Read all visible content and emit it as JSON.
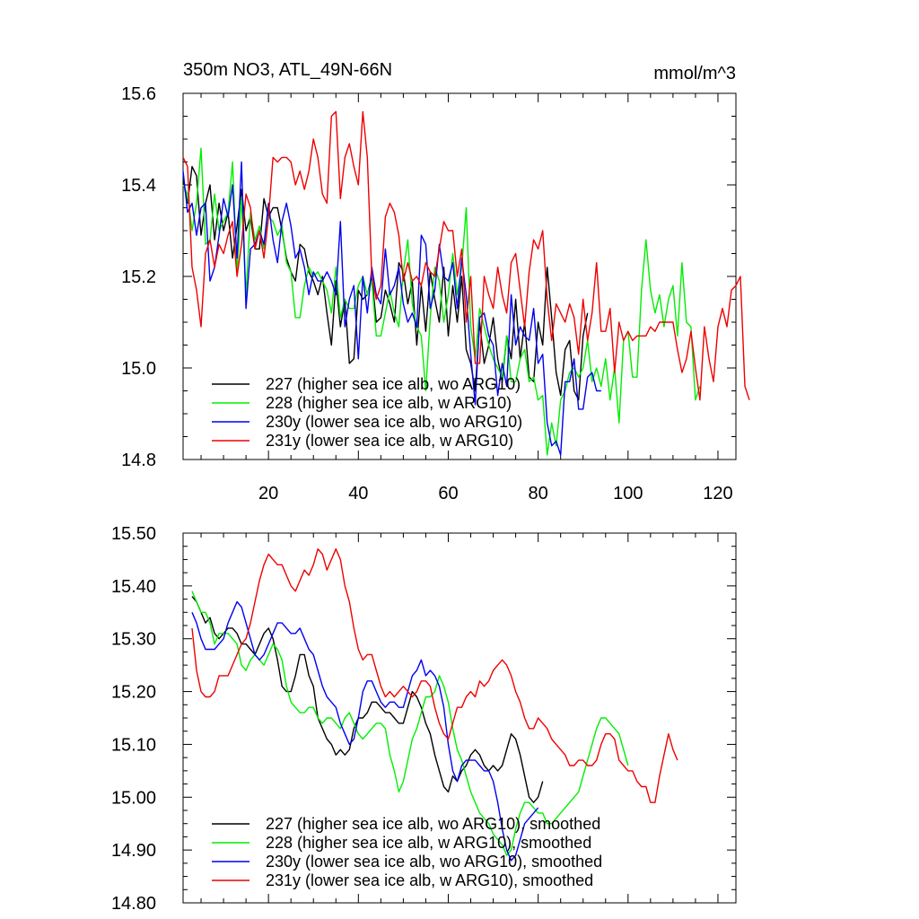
{
  "chart_data": [
    {
      "type": "line",
      "title": "350m NO3, ATL_49N-66N",
      "units": "mmol/m^3",
      "xlim": [
        1,
        124
      ],
      "ylim": [
        14.8,
        15.6
      ],
      "yticks": [
        "15.6",
        "15.4",
        "15.2",
        "15.0",
        "14.8"
      ],
      "xticks": [
        "20",
        "40",
        "60",
        "80",
        "100",
        "120"
      ],
      "series": [
        {
          "name": "227 (higher sea ice alb, wo ARG10)",
          "color": "#000000",
          "x0": 1,
          "values": [
            15.41,
            15.36,
            15.44,
            15.42,
            15.29,
            15.36,
            15.4,
            15.28,
            15.36,
            15.3,
            15.34,
            15.24,
            15.31,
            15.39,
            15.3,
            15.33,
            15.26,
            15.26,
            15.37,
            15.33,
            15.35,
            15.35,
            15.3,
            15.24,
            15.21,
            15.19,
            15.27,
            15.26,
            15.21,
            15.19,
            15.16,
            15.2,
            15.12,
            15.05,
            15.19,
            15.09,
            15.15,
            15.01,
            15.02,
            15.17,
            15.15,
            15.16,
            15.2,
            15.1,
            15.11,
            15.17,
            15.14,
            15.1,
            15.23,
            15.21,
            15.14,
            15.19,
            15.05,
            15.18,
            15.08,
            15.21,
            15.15,
            15.1,
            15.22,
            15.07,
            15.18,
            15.1,
            15.2,
            15.04,
            15.01,
            14.95,
            15.1,
            15.01,
            15.05,
            15.11,
            15.02,
            14.97,
            15.07,
            15.02,
            15.15,
            15.02,
            15.1,
            14.98,
            14.97,
            15.1,
            15.05,
            15.22,
            15.11,
            14.99,
            14.94,
            15.04,
            15.06,
            14.95,
            14.93,
            15.07,
            15.12
          ]
        },
        {
          "name": "228 (higher sea ice alb, w ARG10)",
          "color": "#00ee00",
          "x0": 1,
          "values": [
            15.4,
            15.38,
            15.3,
            15.36,
            15.48,
            15.27,
            15.28,
            15.38,
            15.3,
            15.32,
            15.34,
            15.45,
            15.21,
            15.37,
            15.16,
            15.34,
            15.28,
            15.31,
            15.26,
            15.33,
            15.32,
            15.29,
            15.31,
            15.23,
            15.21,
            15.11,
            15.11,
            15.18,
            15.22,
            15.2,
            15.21,
            15.19,
            15.17,
            15.12,
            15.22,
            15.11,
            15.15,
            15.13,
            15.13,
            15.18,
            15.2,
            15.16,
            15.19,
            15.07,
            15.07,
            15.12,
            15.17,
            15.12,
            15.09,
            15.21,
            15.28,
            15.14,
            15.09,
            15.07,
            14.95,
            15.11,
            15.22,
            15.19,
            15.1,
            15.16,
            15.25,
            15.16,
            15.22,
            15.35,
            15.09,
            15.02,
            15.13,
            15.09,
            15.05,
            15.02,
            15.0,
            14.98,
            15.07,
            14.97,
            14.97,
            15.02,
            15.04,
            14.97,
            14.98,
            14.93,
            14.94,
            14.81,
            14.88,
            14.83,
            14.93,
            14.95,
            14.99,
            15.0,
            14.98,
            15.0,
            15.06,
            14.97,
            15.0,
            14.96,
            15.02,
            14.93,
            15.0,
            14.88,
            15.06,
            15.08,
            14.98,
            14.98,
            15.17,
            15.28,
            15.17,
            15.12,
            15.16,
            15.09,
            15.15,
            15.18,
            15.07,
            15.23,
            15.1,
            15.09,
            14.93,
            14.96
          ]
        },
        {
          "name": "230y (lower sea ice alb, wo ARG10)",
          "color": "#0000ee",
          "x0": 1,
          "values": [
            15.43,
            15.34,
            15.36,
            15.29,
            15.35,
            15.36,
            15.19,
            15.22,
            15.29,
            15.37,
            15.33,
            15.4,
            15.24,
            15.45,
            15.13,
            15.26,
            15.27,
            15.3,
            15.27,
            15.36,
            15.28,
            15.23,
            15.32,
            15.36,
            15.31,
            15.24,
            15.26,
            15.22,
            15.16,
            15.21,
            15.19,
            15.19,
            15.21,
            15.19,
            15.16,
            15.32,
            15.09,
            15.15,
            15.18,
            15.02,
            15.2,
            15.12,
            15.22,
            15.16,
            15.14,
            15.26,
            15.16,
            15.18,
            15.22,
            15.14,
            15.1,
            15.12,
            15.09,
            15.29,
            15.27,
            15.13,
            15.17,
            15.27,
            15.2,
            15.19,
            15.23,
            15.13,
            15.24,
            15.16,
            15.03,
            14.92,
            15.11,
            15.12,
            15.07,
            15.05,
            14.94,
            15.01,
            14.96,
            15.16,
            15.05,
            15.09,
            15.07,
            15.06,
            15.13,
            15.01,
            15.03,
            14.88,
            14.83,
            14.84,
            14.81,
            14.97,
            14.97,
            15.02,
            14.91,
            14.91,
            14.98,
            14.99,
            14.95,
            14.95
          ]
        },
        {
          "name": "231y (lower sea ice alb, w ARG10)",
          "color": "#ee0000",
          "x0": 1,
          "values": [
            15.46,
            15.44,
            15.22,
            15.17,
            15.09,
            15.25,
            15.28,
            15.22,
            15.27,
            15.25,
            15.29,
            15.32,
            15.2,
            15.27,
            15.38,
            15.35,
            15.26,
            15.3,
            15.24,
            15.33,
            15.46,
            15.45,
            15.46,
            15.46,
            15.45,
            15.4,
            15.43,
            15.39,
            15.43,
            15.5,
            15.46,
            15.38,
            15.36,
            15.55,
            15.56,
            15.37,
            15.46,
            15.49,
            15.44,
            15.4,
            15.56,
            15.46,
            15.2,
            15.15,
            15.18,
            15.33,
            15.36,
            15.34,
            15.29,
            15.19,
            15.23,
            15.19,
            15.2,
            15.18,
            15.23,
            15.21,
            15.2,
            15.26,
            15.32,
            15.3,
            15.3,
            15.2,
            15.26,
            15.1,
            15.2,
            15.01,
            15.01,
            15.2,
            15.16,
            15.13,
            15.22,
            15.16,
            15.12,
            15.23,
            15.25,
            15.17,
            15.09,
            15.21,
            15.28,
            15.26,
            15.3,
            15.15,
            15.06,
            15.14,
            15.12,
            15.1,
            15.14,
            15.11,
            15.03,
            15.15,
            15.06,
            15.12,
            15.23,
            15.08,
            15.08,
            15.13,
            14.99,
            15.1,
            15.06,
            15.08,
            15.06,
            15.07,
            15.07,
            15.07,
            15.09,
            15.08,
            15.1,
            15.1,
            15.1,
            15.1,
            15.04,
            14.99,
            15.02,
            15.08,
            15.0,
            14.93,
            15.09,
            15.02,
            14.97,
            15.09,
            15.13,
            15.09,
            15.17,
            15.18,
            15.2,
            14.96,
            14.93
          ]
        }
      ],
      "legend": "lower-left"
    },
    {
      "type": "line",
      "title": "",
      "xlim": [
        1,
        124
      ],
      "ylim": [
        14.8,
        15.5
      ],
      "yticks": [
        "15.50",
        "15.40",
        "15.30",
        "15.20",
        "15.10",
        "15.00",
        "14.90",
        "14.80"
      ],
      "series": [
        {
          "name": "227 (higher sea ice alb, wo ARG10), smoothed",
          "color": "#000000",
          "x0": 3,
          "values": [
            15.38,
            15.37,
            15.35,
            15.33,
            15.34,
            15.31,
            15.3,
            15.31,
            15.32,
            15.32,
            15.31,
            15.29,
            15.29,
            15.28,
            15.27,
            15.29,
            15.31,
            15.32,
            15.3,
            15.26,
            15.21,
            15.2,
            15.2,
            15.23,
            15.27,
            15.27,
            15.23,
            15.21,
            15.15,
            15.13,
            15.11,
            15.1,
            15.08,
            15.09,
            15.08,
            15.09,
            15.13,
            15.15,
            15.15,
            15.16,
            15.18,
            15.18,
            15.17,
            15.16,
            15.16,
            15.15,
            15.14,
            15.14,
            15.17,
            15.2,
            15.19,
            15.17,
            15.14,
            15.12,
            15.08,
            15.05,
            15.02,
            15.01,
            15.04,
            15.03,
            15.05,
            15.06,
            15.08,
            15.09,
            15.08,
            15.06,
            15.05,
            15.06,
            15.05,
            15.06,
            15.09,
            15.12,
            15.11,
            15.08,
            15.04,
            15.0,
            14.99,
            15.0,
            15.03
          ]
        },
        {
          "name": "228 (higher sea ice alb, w ARG10), smoothed",
          "color": "#00ee00",
          "x0": 3,
          "values": [
            15.39,
            15.37,
            15.35,
            15.35,
            15.33,
            15.29,
            15.31,
            15.31,
            15.31,
            15.3,
            15.29,
            15.25,
            15.24,
            15.26,
            15.27,
            15.26,
            15.25,
            15.27,
            15.29,
            15.28,
            15.26,
            15.21,
            15.18,
            15.17,
            15.16,
            15.16,
            15.17,
            15.17,
            15.15,
            15.14,
            15.15,
            15.15,
            15.14,
            15.13,
            15.15,
            15.16,
            15.14,
            15.12,
            15.11,
            15.12,
            15.13,
            15.14,
            15.14,
            15.13,
            15.08,
            15.05,
            15.01,
            15.03,
            15.07,
            15.11,
            15.13,
            15.16,
            15.19,
            15.19,
            15.2,
            15.23,
            15.21,
            15.18,
            15.13,
            15.09,
            15.07,
            15.04,
            15.01,
            14.99,
            14.97,
            14.96,
            14.95,
            14.93,
            14.92,
            14.91,
            14.89,
            14.9,
            14.94,
            14.97,
            14.99,
            14.99,
            14.98,
            14.97,
            14.97,
            14.95,
            14.95,
            14.96,
            14.97,
            14.98,
            14.99,
            15.0,
            15.01,
            15.04,
            15.07,
            15.1,
            15.13,
            15.15,
            15.15,
            15.14,
            15.13,
            15.12,
            15.09,
            15.06
          ]
        },
        {
          "name": "230y (lower sea ice alb, wo ARG10), smoothed",
          "color": "#0000ee",
          "x0": 3,
          "values": [
            15.35,
            15.33,
            15.3,
            15.28,
            15.28,
            15.28,
            15.29,
            15.3,
            15.33,
            15.35,
            15.37,
            15.36,
            15.33,
            15.3,
            15.27,
            15.26,
            15.27,
            15.29,
            15.31,
            15.33,
            15.33,
            15.32,
            15.31,
            15.31,
            15.32,
            15.3,
            15.28,
            15.27,
            15.24,
            15.21,
            15.19,
            15.18,
            15.17,
            15.14,
            15.12,
            15.1,
            15.11,
            15.15,
            15.2,
            15.22,
            15.22,
            15.2,
            15.18,
            15.17,
            15.18,
            15.18,
            15.17,
            15.17,
            15.2,
            15.23,
            15.24,
            15.26,
            15.23,
            15.24,
            15.23,
            15.21,
            15.17,
            15.1,
            15.05,
            15.03,
            15.06,
            15.07,
            15.07,
            15.07,
            15.06,
            15.05,
            15.05,
            15.03,
            14.99,
            14.94,
            14.9,
            14.88,
            14.89,
            14.92,
            14.95,
            14.96,
            14.97,
            14.98
          ]
        },
        {
          "name": "231y (lower sea ice alb, w ARG10), smoothed",
          "color": "#ee0000",
          "x0": 3,
          "values": [
            15.32,
            15.24,
            15.2,
            15.19,
            15.19,
            15.2,
            15.23,
            15.23,
            15.23,
            15.25,
            15.27,
            15.29,
            15.3,
            15.33,
            15.37,
            15.41,
            15.44,
            15.46,
            15.45,
            15.44,
            15.44,
            15.42,
            15.4,
            15.39,
            15.41,
            15.43,
            15.42,
            15.44,
            15.47,
            15.46,
            15.43,
            15.45,
            15.47,
            15.45,
            15.4,
            15.37,
            15.32,
            15.28,
            15.26,
            15.27,
            15.27,
            15.24,
            15.21,
            15.19,
            15.2,
            15.19,
            15.2,
            15.21,
            15.2,
            15.19,
            15.2,
            15.22,
            15.22,
            15.21,
            15.17,
            15.14,
            15.12,
            15.11,
            15.14,
            15.17,
            15.17,
            15.19,
            15.2,
            15.19,
            15.22,
            15.21,
            15.22,
            15.24,
            15.25,
            15.26,
            15.25,
            15.23,
            15.2,
            15.18,
            15.15,
            15.13,
            15.13,
            15.15,
            15.14,
            15.13,
            15.11,
            15.1,
            15.09,
            15.08,
            15.06,
            15.06,
            15.07,
            15.07,
            15.06,
            15.06,
            15.07,
            15.1,
            15.12,
            15.12,
            15.11,
            15.07,
            15.06,
            15.05,
            15.05,
            15.03,
            15.02,
            15.02,
            14.99,
            14.99,
            15.04,
            15.08,
            15.12,
            15.09,
            15.07
          ]
        }
      ],
      "legend": "lower-left"
    }
  ]
}
